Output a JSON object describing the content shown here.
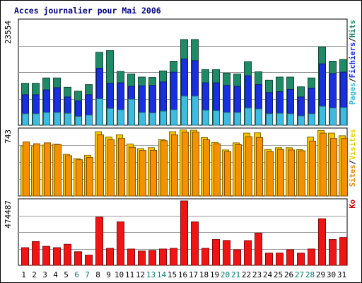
{
  "chart_data": {
    "type": "bar",
    "title": "Acces journalier pour Mai 2006",
    "categories": [
      "1",
      "2",
      "3",
      "4",
      "5",
      "6",
      "7",
      "8",
      "9",
      "10",
      "11",
      "12",
      "13",
      "14",
      "15",
      "16",
      "17",
      "18",
      "19",
      "20",
      "21",
      "22",
      "23",
      "24",
      "25",
      "26",
      "27",
      "28",
      "29",
      "30",
      "31"
    ],
    "weekend_days": [
      "6",
      "7",
      "13",
      "14",
      "20",
      "21",
      "27",
      "28"
    ],
    "panels": [
      {
        "name": "traffic",
        "ymax_label": "23554",
        "ymax": 23554,
        "side_labels": [
          {
            "text": "Pages",
            "color": "#3dbbe0"
          },
          {
            "text": "/",
            "color": "#000000"
          },
          {
            "text": "Fichiers",
            "color": "#1a2fe0"
          },
          {
            "text": "/",
            "color": "#000000"
          },
          {
            "text": "Hits",
            "color": "#1f8a65"
          }
        ],
        "series": [
          {
            "name": "Hits",
            "color": "#1f8a65",
            "values": [
              9500,
              9500,
              10700,
              10700,
              8600,
              7700,
              9200,
              16500,
              16900,
              12200,
              11600,
              10900,
              10800,
              12300,
              14500,
              19400,
              19400,
              12600,
              12600,
              11800,
              11600,
              14400,
              12100,
              10200,
              10900,
              10900,
              8700,
              10700,
              17700,
              14500,
              14900
            ]
          },
          {
            "name": "Fichiers",
            "color": "#1a2fe0",
            "values": [
              6900,
              6900,
              8000,
              8500,
              6400,
              5500,
              6900,
              12900,
              9500,
              9600,
              8800,
              8900,
              9000,
              9800,
              12000,
              15000,
              14600,
              9600,
              9600,
              9000,
              8800,
              11200,
              9200,
              7400,
              7600,
              8100,
              6400,
              8400,
              13900,
              11700,
              12000
            ]
          },
          {
            "name": "Pages",
            "color": "#3dbbe0",
            "values": [
              2600,
              2600,
              2900,
              2900,
              2700,
              2000,
              2300,
              6000,
              3800,
              3500,
              5900,
              2900,
              2800,
              3200,
              3500,
              6600,
              6600,
              3400,
              3300,
              2900,
              2900,
              3900,
              3700,
              2600,
              2700,
              2600,
              2100,
              2600,
              4300,
              3900,
              4000
            ]
          }
        ]
      },
      {
        "name": "visits",
        "ymax_label": "743",
        "ymax": 743,
        "side_labels": [
          {
            "text": "Sites",
            "color": "#e58a00"
          },
          {
            "text": "/",
            "color": "#000000"
          },
          {
            "text": "Visites",
            "color": "#e6d200"
          }
        ],
        "series": [
          {
            "name": "Visites",
            "color": "#f5c400",
            "values": [
              565,
              560,
              575,
              585,
              470,
              420,
              460,
              726,
              665,
              690,
              587,
              535,
              545,
              635,
              726,
              746,
              742,
              660,
              605,
              520,
              600,
              710,
              713,
              525,
              545,
              545,
              523,
              665,
              740,
              710,
              680
            ]
          },
          {
            "name": "Sites",
            "color": "#f59000",
            "values": [
              610,
              590,
              600,
              580,
              455,
              410,
              435,
              690,
              635,
              650,
              550,
              515,
              515,
              625,
              690,
              720,
              720,
              635,
              590,
              500,
              580,
              670,
              660,
              500,
              525,
              520,
              510,
              620,
              710,
              650,
              650
            ]
          }
        ]
      },
      {
        "name": "volume",
        "ymax_label": "474487",
        "ymax": 474487,
        "side_labels": [
          {
            "text": "Ko",
            "color": "#d00000"
          }
        ],
        "series": [
          {
            "name": "Ko",
            "color": "#f01414",
            "values": [
              130000,
              175000,
              140000,
              130000,
              155000,
              100000,
              75000,
              355000,
              125000,
              320000,
              120000,
              105000,
              110000,
              120000,
              125000,
              474487,
              320000,
              125000,
              190000,
              183000,
              115000,
              182000,
              237000,
              90000,
              90000,
              115000,
              90000,
              120000,
              343000,
              190000,
              205000
            ]
          }
        ]
      }
    ]
  }
}
